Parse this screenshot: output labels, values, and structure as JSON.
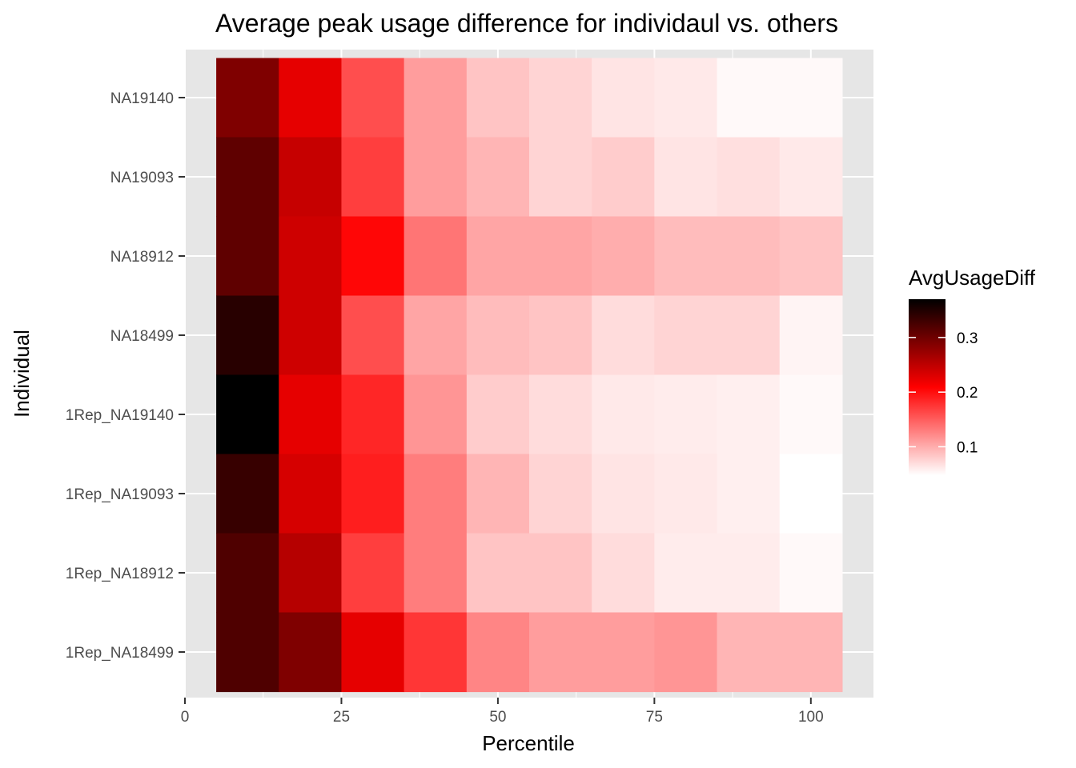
{
  "chart_data": {
    "type": "heatmap",
    "title": "Average peak usage difference for individaul vs. others",
    "xlabel": "Percentile",
    "ylabel": "Individual",
    "xlim": [
      0,
      110
    ],
    "x_ticks": [
      0,
      25,
      50,
      75,
      100
    ],
    "x_tick_labels": [
      "0",
      "25",
      "50",
      "75",
      "100"
    ],
    "x": [
      10,
      20,
      30,
      40,
      50,
      60,
      70,
      80,
      90,
      100
    ],
    "tile_width": 10,
    "individuals": [
      "NA19140",
      "NA19093",
      "NA18912",
      "NA18499",
      "1Rep_NA19140",
      "1Rep_NA19093",
      "1Rep_NA18912",
      "1Rep_NA18499"
    ],
    "values": [
      [
        0.29,
        0.225,
        0.16,
        0.11,
        0.085,
        0.075,
        0.065,
        0.062,
        0.052,
        0.052
      ],
      [
        0.31,
        0.245,
        0.17,
        0.11,
        0.095,
        0.075,
        0.08,
        0.065,
        0.068,
        0.062
      ],
      [
        0.31,
        0.24,
        0.205,
        0.135,
        0.105,
        0.105,
        0.1,
        0.09,
        0.09,
        0.085
      ],
      [
        0.345,
        0.24,
        0.16,
        0.105,
        0.09,
        0.085,
        0.07,
        0.075,
        0.075,
        0.055
      ],
      [
        0.37,
        0.225,
        0.185,
        0.115,
        0.08,
        0.07,
        0.062,
        0.06,
        0.058,
        0.052
      ],
      [
        0.335,
        0.235,
        0.19,
        0.13,
        0.095,
        0.075,
        0.065,
        0.062,
        0.058,
        0.048
      ],
      [
        0.32,
        0.255,
        0.17,
        0.13,
        0.085,
        0.085,
        0.07,
        0.06,
        0.06,
        0.052
      ],
      [
        0.32,
        0.29,
        0.225,
        0.175,
        0.125,
        0.11,
        0.11,
        0.115,
        0.095,
        0.095
      ]
    ],
    "legend": {
      "title": "AvgUsageDiff",
      "position": "right",
      "range": [
        0.048,
        0.37
      ],
      "breaks": [
        0.1,
        0.2,
        0.3
      ],
      "break_labels": [
        "0.1",
        "0.2",
        "0.3"
      ]
    },
    "colors": {
      "low": "#ffffff",
      "mid": "#ff0000",
      "high": "#000000",
      "panel_bg": "#e6e6e6",
      "grid": "#ffffff",
      "tick": "#333333"
    },
    "grid": true
  }
}
